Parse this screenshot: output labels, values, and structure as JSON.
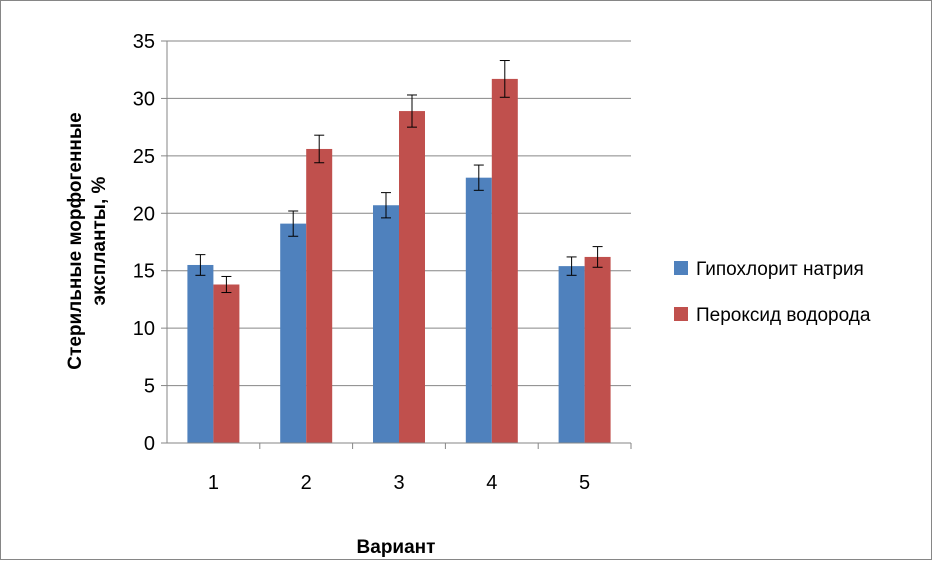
{
  "chart_data": {
    "type": "bar",
    "categories": [
      "1",
      "2",
      "3",
      "4",
      "5"
    ],
    "series": [
      {
        "name": "Гипохлорит натрия",
        "color": "#4F81BD",
        "values": [
          15.5,
          19.1,
          20.7,
          23.1,
          15.4
        ],
        "errors": [
          0.9,
          1.1,
          1.1,
          1.1,
          0.8
        ]
      },
      {
        "name": "Пероксид водорода",
        "color": "#C0504D",
        "values": [
          13.8,
          25.6,
          28.9,
          31.7,
          16.2
        ],
        "errors": [
          0.7,
          1.2,
          1.4,
          1.6,
          0.9
        ]
      }
    ],
    "xlabel": "Вариант",
    "ylabel_line1": "Стерильные морфогенные",
    "ylabel_line2": "экспланты, %",
    "ylim": [
      0,
      35
    ],
    "yticks": [
      0,
      5,
      10,
      15,
      20,
      25,
      30,
      35
    ],
    "grid": true,
    "legend": "right"
  }
}
